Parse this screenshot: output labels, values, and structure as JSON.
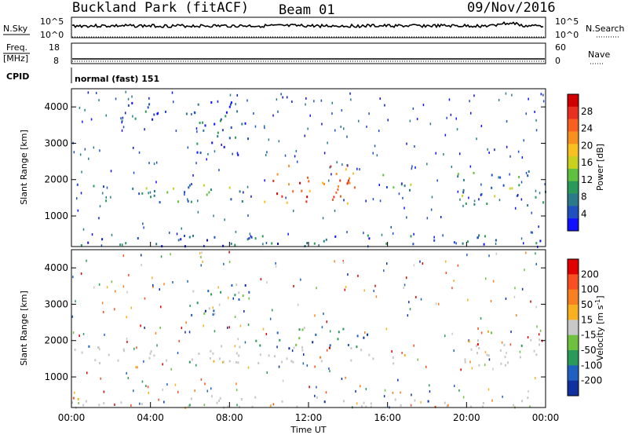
{
  "header": {
    "title_left": "Buckland Park (fitACF)",
    "title_center": "Beam 01",
    "title_right": "09/Nov/2016"
  },
  "strips": {
    "nsky_label": "N.Sky",
    "nsearch_label": "N.Search",
    "nsky_ticks": [
      "10^5",
      "10^0"
    ],
    "nsearch_ticks": [
      "10^5",
      "10^0"
    ],
    "freq_label": "Freq.",
    "freq_unit": "[MHz]",
    "freq_ticks": [
      "18",
      "8"
    ],
    "nave_label": "Nave",
    "nave_ticks": [
      "60",
      "0"
    ],
    "cpid_label": "CPID",
    "cpid_text": "normal (fast) 151"
  },
  "chart_data": [
    {
      "type": "heatmap",
      "name": "power",
      "ylabel": "Slant Range [km]",
      "yticks": [
        1000,
        2000,
        3000,
        4000
      ],
      "ylim": [
        180,
        4500
      ],
      "xlim_hours": [
        0,
        24
      ],
      "colorbar": {
        "label": "Power [dB]",
        "ticks": [
          4,
          8,
          12,
          16,
          20,
          24,
          28
        ],
        "colors": [
          "#1010ff",
          "#2050c0",
          "#2a7a8a",
          "#2a9a5a",
          "#60c040",
          "#c8d020",
          "#f8c020",
          "#f89020",
          "#f86020",
          "#e83020",
          "#d00000"
        ]
      },
      "bands": [
        {
          "from": 0,
          "to": 9,
          "r0": 1400,
          "r1": 1900,
          "level": "mid"
        },
        {
          "from": 9,
          "to": 14.5,
          "r0": 1350,
          "r1": 1800,
          "level": "high"
        },
        {
          "from": 9.5,
          "to": 15,
          "r0": 1800,
          "r1": 2450,
          "level": "high"
        },
        {
          "from": 15,
          "to": 17.2,
          "r0": 1700,
          "r1": 2200,
          "level": "mid"
        },
        {
          "from": 19.5,
          "to": 24,
          "r0": 1300,
          "r1": 2300,
          "level": "mid"
        },
        {
          "from": 0,
          "to": 24,
          "r0": 180,
          "r1": 500,
          "level": "low"
        },
        {
          "from": 6,
          "to": 9,
          "r0": 2600,
          "r1": 3600,
          "level": "low"
        },
        {
          "from": 2,
          "to": 8.5,
          "r0": 3600,
          "r1": 4200,
          "level": "low"
        }
      ]
    },
    {
      "type": "heatmap",
      "name": "velocity",
      "ylabel": "Slant Range [km]",
      "xlabel": "Time UT",
      "xticks": [
        "00:00",
        "04:00",
        "08:00",
        "12:00",
        "16:00",
        "20:00",
        "00:00"
      ],
      "yticks": [
        1000,
        2000,
        3000,
        4000
      ],
      "ylim": [
        180,
        4500
      ],
      "xlim_hours": [
        0,
        24
      ],
      "colorbar": {
        "label": "Velocity [m s^-1]",
        "ticks": [
          200,
          100,
          50,
          15,
          -15,
          -50,
          -100,
          -200
        ],
        "colors": [
          "#1030a0",
          "#2060c0",
          "#2a9a5a",
          "#70c040",
          "#c8c8c8",
          "#f8b020",
          "#f88020",
          "#f85020",
          "#e00000"
        ]
      },
      "bands": [
        {
          "from": 0,
          "to": 17,
          "r0": 1400,
          "r1": 1900,
          "level": "ground"
        },
        {
          "from": 9,
          "to": 15,
          "r0": 1800,
          "r1": 2400,
          "level": "mixed"
        },
        {
          "from": 19.5,
          "to": 24,
          "r0": 1300,
          "r1": 2300,
          "level": "ground"
        },
        {
          "from": 0,
          "to": 24,
          "r0": 180,
          "r1": 500,
          "level": "ground"
        },
        {
          "from": 6,
          "to": 9,
          "r0": 2600,
          "r1": 3600,
          "level": "mixed"
        }
      ]
    }
  ]
}
